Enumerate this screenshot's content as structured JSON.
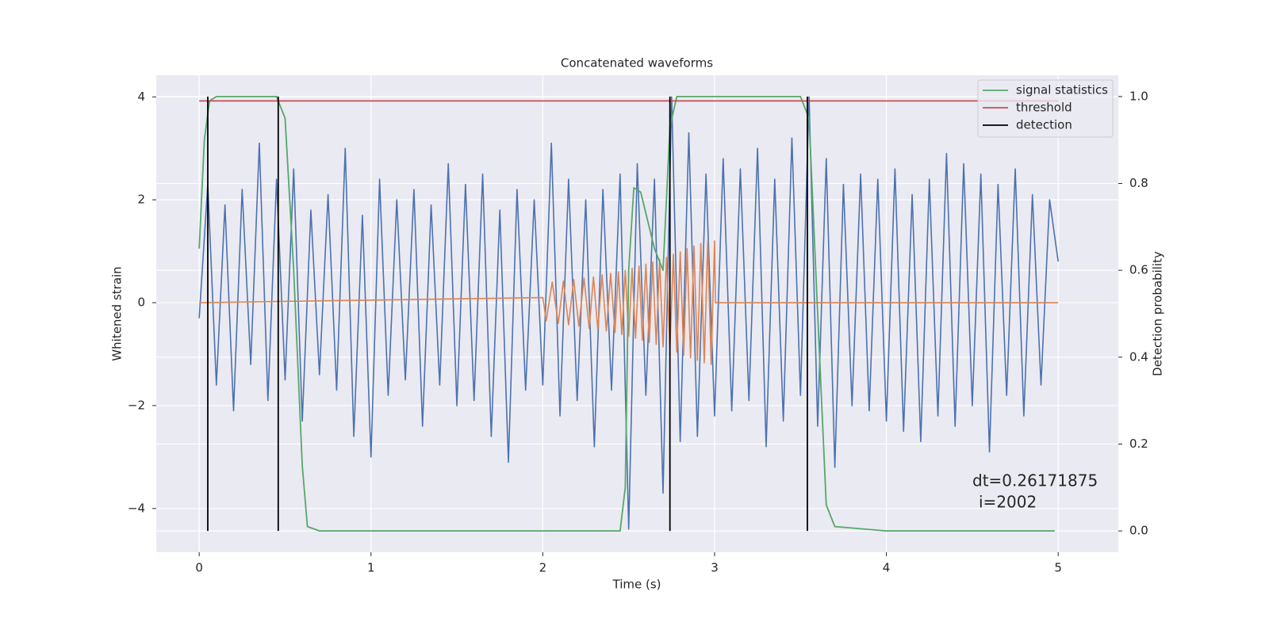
{
  "chart_data": {
    "type": "line",
    "title": "Concatenated waveforms",
    "x_label": "Time (s)",
    "y_label": "Whitened strain",
    "y2_label": "Detection probability",
    "xlim": [
      -0.25,
      5.35
    ],
    "xticks": [
      0,
      1,
      2,
      3,
      4,
      5
    ],
    "ylim": [
      -4.85,
      4.42
    ],
    "yticks": [
      {
        "value": -4,
        "label": "−4"
      },
      {
        "value": -2,
        "label": "−2"
      },
      0,
      2,
      4
    ],
    "y2lim": [
      -0.049,
      1.049
    ],
    "y2ticks": [
      {
        "value": 0,
        "label": "0.0"
      },
      0.2,
      0.4,
      0.6,
      0.8,
      {
        "value": 1,
        "label": "1.0"
      }
    ],
    "grid": true,
    "legend": "upper right",
    "annotations": [
      "dt=0.26171875",
      "i=2002"
    ],
    "series": [
      {
        "color": "#4c72b0",
        "x": [
          0,
          0.05,
          0.1,
          0.15,
          0.2,
          0.25,
          0.3,
          0.35,
          0.4,
          0.45,
          0.5,
          0.55,
          0.6,
          0.65,
          0.7,
          0.75,
          0.8,
          0.85,
          0.9,
          0.95,
          1,
          1.05,
          1.1,
          1.15,
          1.2,
          1.25,
          1.3,
          1.35,
          1.4,
          1.45,
          1.5,
          1.55,
          1.6,
          1.65,
          1.7,
          1.75,
          1.8,
          1.85,
          1.9,
          1.95,
          2,
          2.05,
          2.1,
          2.15,
          2.2,
          2.25,
          2.3,
          2.35,
          2.4,
          2.45,
          2.5,
          2.55,
          2.6,
          2.65,
          2.7,
          2.75,
          2.8,
          2.85,
          2.9,
          2.95,
          3,
          3.05,
          3.1,
          3.15,
          3.2,
          3.25,
          3.3,
          3.35,
          3.4,
          3.45,
          3.5,
          3.55,
          3.6,
          3.65,
          3.7,
          3.75,
          3.8,
          3.85,
          3.9,
          3.95,
          4,
          4.05,
          4.1,
          4.15,
          4.2,
          4.25,
          4.3,
          4.35,
          4.4,
          4.45,
          4.5,
          4.55,
          4.6,
          4.65,
          4.7,
          4.75,
          4.8,
          4.85,
          4.9,
          4.95,
          5
        ],
        "values": [
          -0.3,
          2.3,
          -1.6,
          1.9,
          -2.1,
          2.2,
          -1.2,
          3.1,
          -1.9,
          2.4,
          -1.5,
          2.6,
          -2.3,
          1.8,
          -1.4,
          2.1,
          -1.7,
          3.0,
          -2.6,
          1.7,
          -3.0,
          2.4,
          -1.8,
          2.0,
          -1.5,
          2.2,
          -2.4,
          1.9,
          -1.6,
          2.7,
          -2.0,
          2.3,
          -1.9,
          2.5,
          -2.6,
          1.8,
          -3.1,
          2.2,
          -1.7,
          2.0,
          -1.6,
          3.1,
          -2.2,
          2.4,
          -1.9,
          2.0,
          -2.8,
          2.2,
          -1.7,
          2.5,
          -4.4,
          2.7,
          -1.8,
          2.4,
          -3.7,
          4.0,
          -2.7,
          3.3,
          -2.6,
          2.5,
          -2.2,
          2.8,
          -2.1,
          2.6,
          -1.9,
          3.0,
          -2.8,
          2.4,
          -2.3,
          3.2,
          -1.8,
          4.0,
          -2.4,
          2.8,
          -3.2,
          2.3,
          -2.0,
          2.5,
          -2.1,
          2.4,
          -2.3,
          2.6,
          -2.5,
          2.1,
          -2.7,
          2.4,
          -2.2,
          2.9,
          -2.4,
          2.7,
          -2.0,
          2.5,
          -2.9,
          2.3,
          -1.8,
          2.6,
          -2.2,
          2.1,
          -1.6,
          2.0,
          0.8
        ]
      },
      {
        "color": "#dd8452",
        "x": [
          0,
          2,
          2.02,
          2.055,
          2.09,
          2.12,
          2.15,
          2.18,
          2.21,
          2.24,
          2.27,
          2.295,
          2.32,
          2.345,
          2.37,
          2.395,
          2.42,
          2.44,
          2.46,
          2.48,
          2.5,
          2.52,
          2.54,
          2.56,
          2.58,
          2.6,
          2.62,
          2.64,
          2.66,
          2.68,
          2.7,
          2.72,
          2.74,
          2.76,
          2.78,
          2.8,
          2.82,
          2.84,
          2.86,
          2.88,
          2.9,
          2.92,
          2.94,
          2.96,
          2.98,
          3,
          3.005,
          5
        ],
        "values": [
          0,
          0.1,
          -0.35,
          0.4,
          -0.4,
          0.42,
          -0.43,
          0.45,
          -0.46,
          0.48,
          -0.5,
          0.5,
          -0.52,
          0.54,
          -0.55,
          0.57,
          -0.58,
          0.6,
          -0.62,
          0.63,
          -0.65,
          0.67,
          -0.69,
          0.71,
          -0.73,
          0.75,
          -0.77,
          0.79,
          -0.81,
          0.84,
          -0.86,
          0.88,
          -0.91,
          0.94,
          -0.96,
          0.99,
          -1.02,
          1.05,
          -1.07,
          1.1,
          -1.12,
          1.15,
          -1.17,
          1.2,
          -1.2,
          1.2,
          0,
          0
        ]
      },
      {
        "name": "signal statistics",
        "color": "#55a868",
        "axis": "y2",
        "x": [
          0,
          0.03,
          0.06,
          0.1,
          0.45,
          0.5,
          0.55,
          0.6,
          0.63,
          0.7,
          2.45,
          2.48,
          2.5,
          2.53,
          2.57,
          2.65,
          2.7,
          2.74,
          2.78,
          3.5,
          3.55,
          3.6,
          3.65,
          3.7,
          4,
          4.98
        ],
        "values": [
          0.65,
          0.9,
          0.99,
          1.0,
          1.0,
          0.95,
          0.6,
          0.15,
          0.01,
          0.0,
          0.0,
          0.1,
          0.6,
          0.79,
          0.78,
          0.65,
          0.6,
          0.93,
          1.0,
          1.0,
          0.95,
          0.5,
          0.06,
          0.01,
          0.0,
          0.0
        ]
      },
      {
        "name": "threshold",
        "color": "#c44e52",
        "axis": "y2",
        "x": [
          0,
          5
        ],
        "values": [
          0.99,
          0.99
        ]
      },
      {
        "name": "detection",
        "color": "#000000",
        "axis": "y2",
        "x": [
          0.05,
          0.05,
          null,
          0.46,
          0.46,
          null,
          2.74,
          2.74,
          null,
          3.54,
          3.54
        ],
        "values": [
          0,
          1,
          null,
          0,
          1,
          null,
          0,
          1,
          null,
          0,
          1
        ]
      }
    ]
  }
}
